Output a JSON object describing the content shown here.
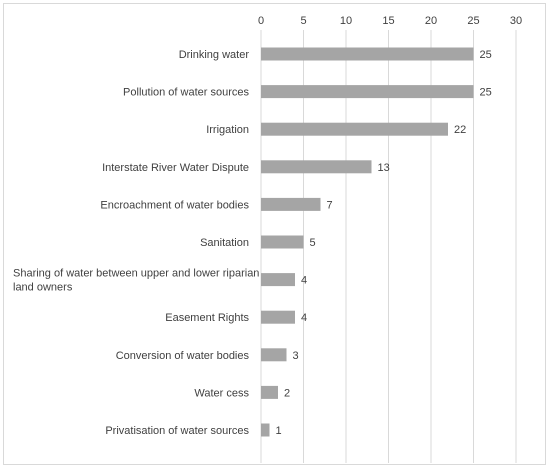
{
  "chart_data": {
    "type": "bar",
    "orientation": "horizontal",
    "categories": [
      "Drinking water",
      "Pollution of water sources",
      "Irrigation",
      "Interstate River Water Dispute",
      "Encroachment of water bodies",
      "Sanitation",
      "Sharing of water between upper and lower riparian land owners",
      "Easement Rights",
      "Conversion of water bodies",
      "Water cess",
      "Privatisation of water sources"
    ],
    "category_label_lines": [
      [
        "Drinking water"
      ],
      [
        "Pollution of water sources"
      ],
      [
        "Irrigation"
      ],
      [
        "Interstate River Water Dispute"
      ],
      [
        "Encroachment of water bodies"
      ],
      [
        "Sanitation"
      ],
      [
        "Sharing of water between upper and lower riparian",
        "land owners"
      ],
      [
        "Easement Rights"
      ],
      [
        "Conversion of water bodies"
      ],
      [
        "Water cess"
      ],
      [
        "Privatisation of water sources"
      ]
    ],
    "values": [
      25,
      25,
      22,
      13,
      7,
      5,
      4,
      4,
      3,
      2,
      1
    ],
    "xlim": [
      0,
      30
    ],
    "xticks": [
      0,
      5,
      10,
      15,
      20,
      25,
      30
    ],
    "x_axis_position": "top",
    "grid": true,
    "data_labels": true,
    "title": "",
    "xlabel": "",
    "ylabel": "",
    "colors": {
      "bar": "#a5a5a5",
      "grid": "#d9d9d9",
      "text": "#404040"
    }
  }
}
